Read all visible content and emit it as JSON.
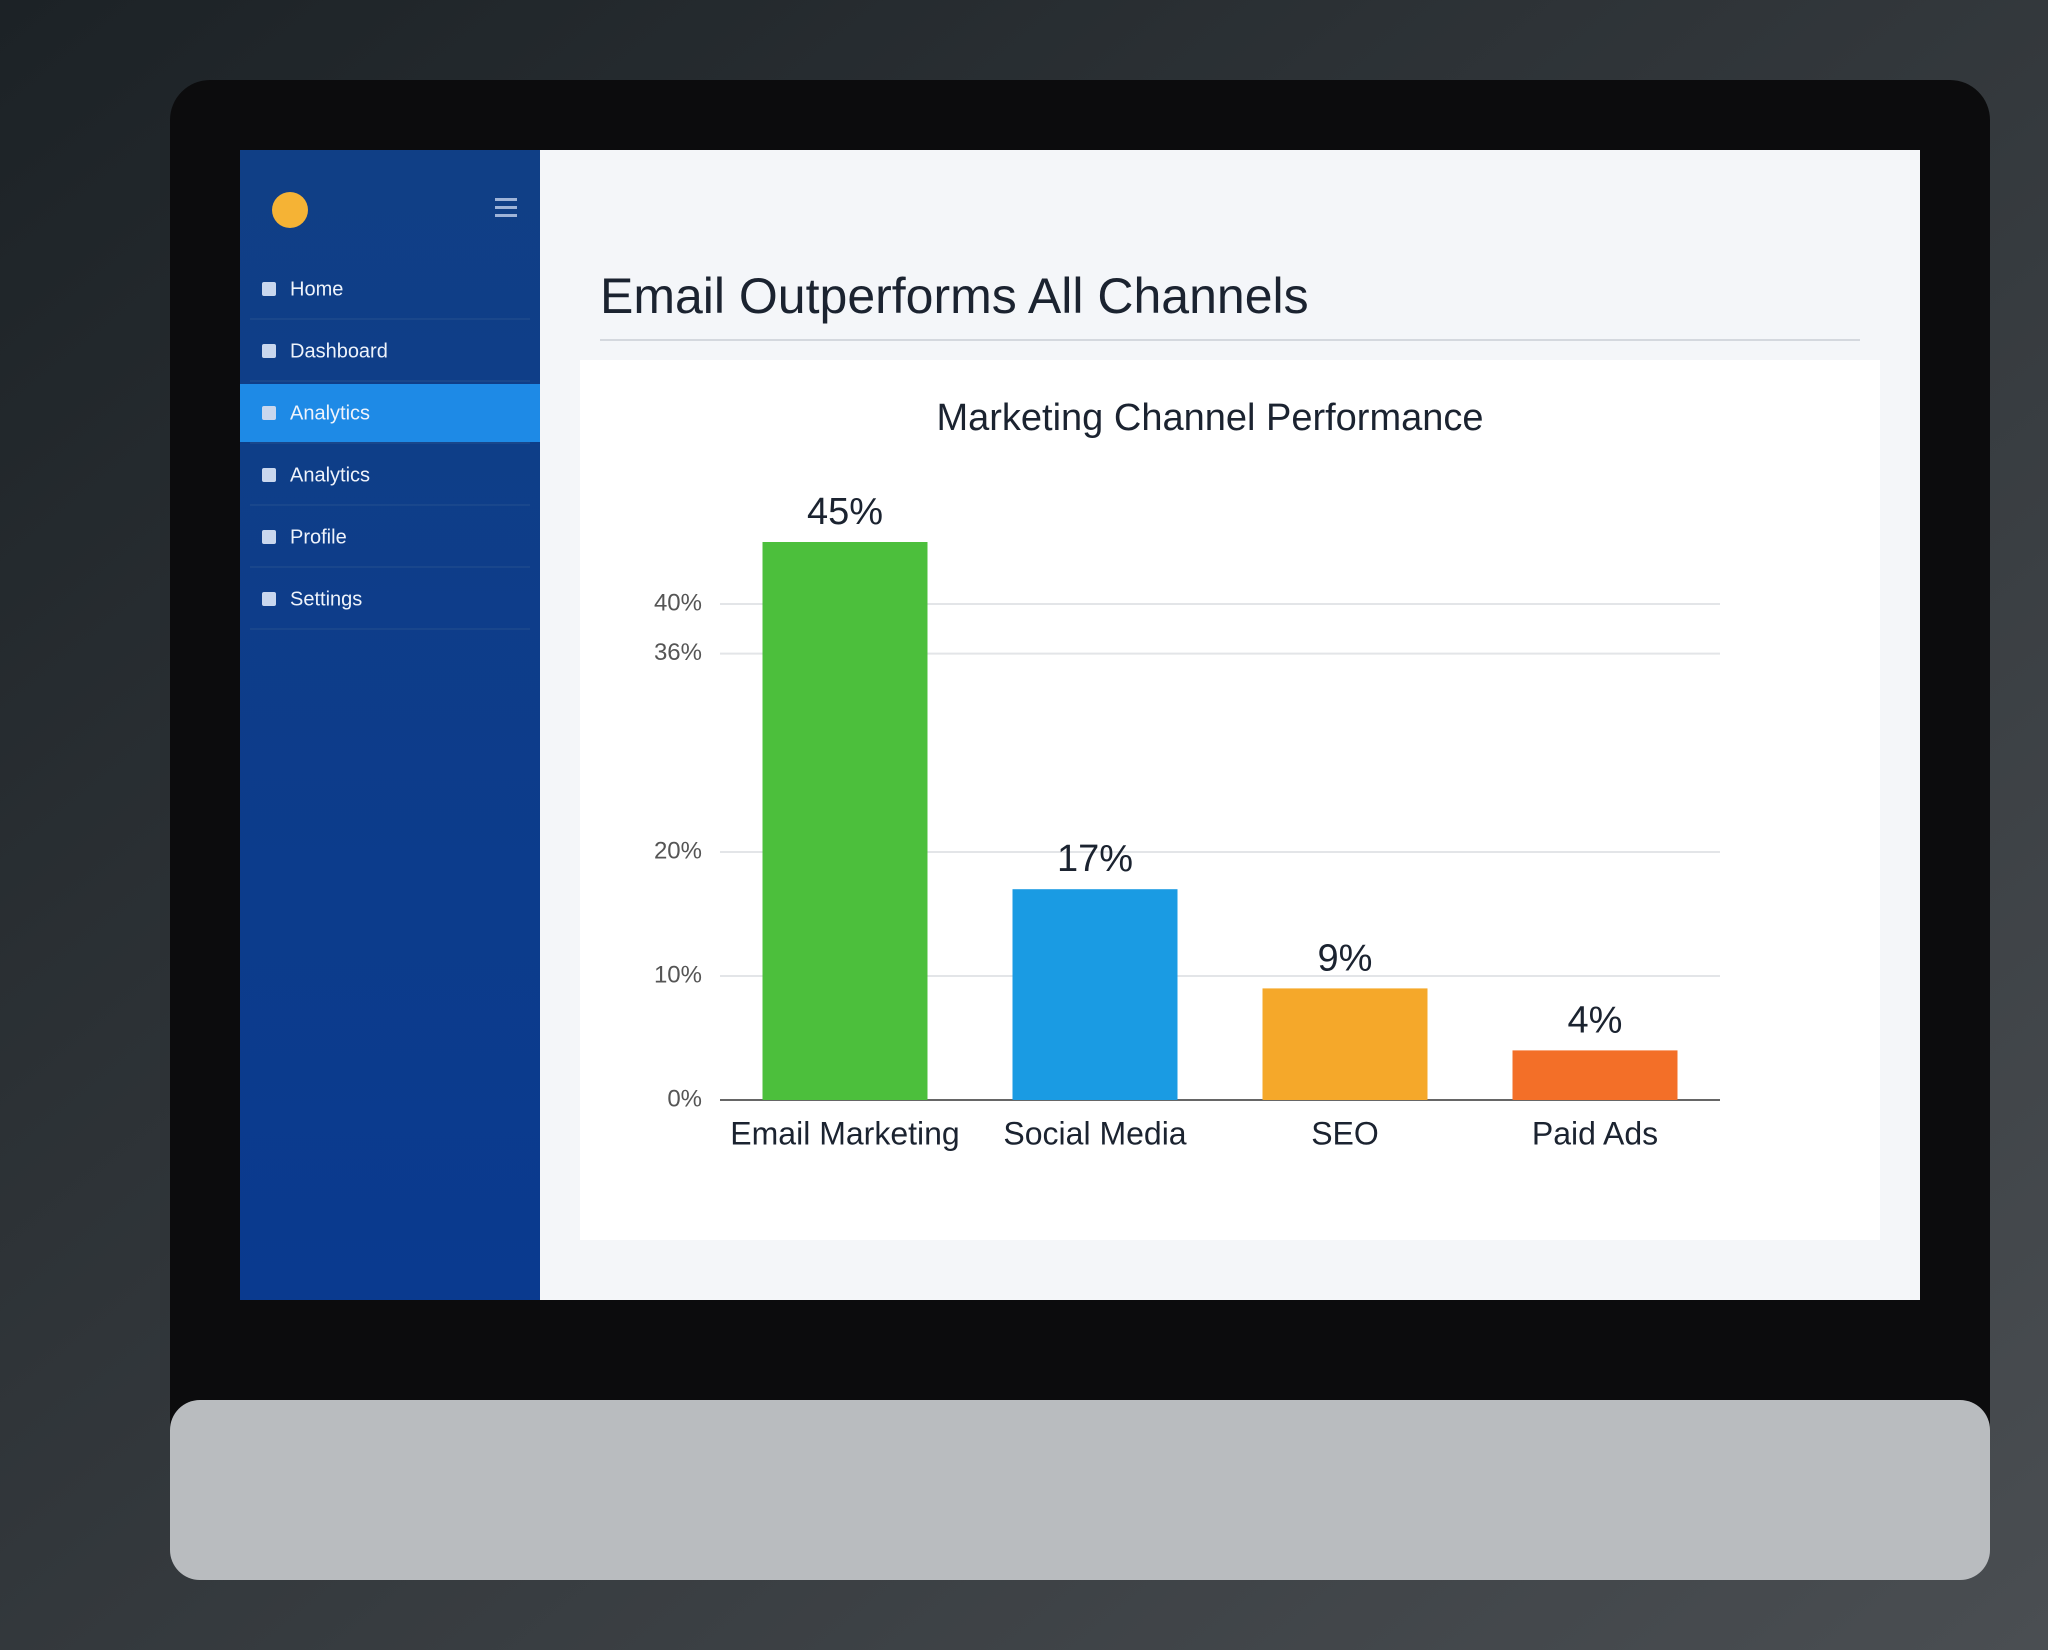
{
  "sidebar": {
    "items": [
      {
        "label": "Home",
        "active": false
      },
      {
        "label": "Dashboard",
        "active": false
      },
      {
        "label": "Analytics",
        "active": true
      },
      {
        "label": "Analytics",
        "active": false
      },
      {
        "label": "Profile",
        "active": false
      },
      {
        "label": "Settings",
        "active": false
      }
    ]
  },
  "header": {
    "title": "Email Outperforms All Channels"
  },
  "chart_data": {
    "type": "bar",
    "title": "Marketing Channel Performance",
    "categories": [
      "Email Marketing",
      "Social Media",
      "SEO",
      "Paid Ads"
    ],
    "values": [
      45,
      17,
      9,
      4
    ],
    "value_labels": [
      "45%",
      "17%",
      "9%",
      "4%"
    ],
    "colors": [
      "#4cbf3c",
      "#1a9be3",
      "#f5a82a",
      "#f36f28"
    ],
    "ylim": [
      0,
      50
    ],
    "yticks": [
      {
        "value": 0,
        "label": "0%"
      },
      {
        "value": 10,
        "label": "10%"
      },
      {
        "value": 20,
        "label": "20%"
      },
      {
        "value": 36,
        "label": "36%"
      },
      {
        "value": 40,
        "label": "40%"
      }
    ],
    "grid": true
  }
}
